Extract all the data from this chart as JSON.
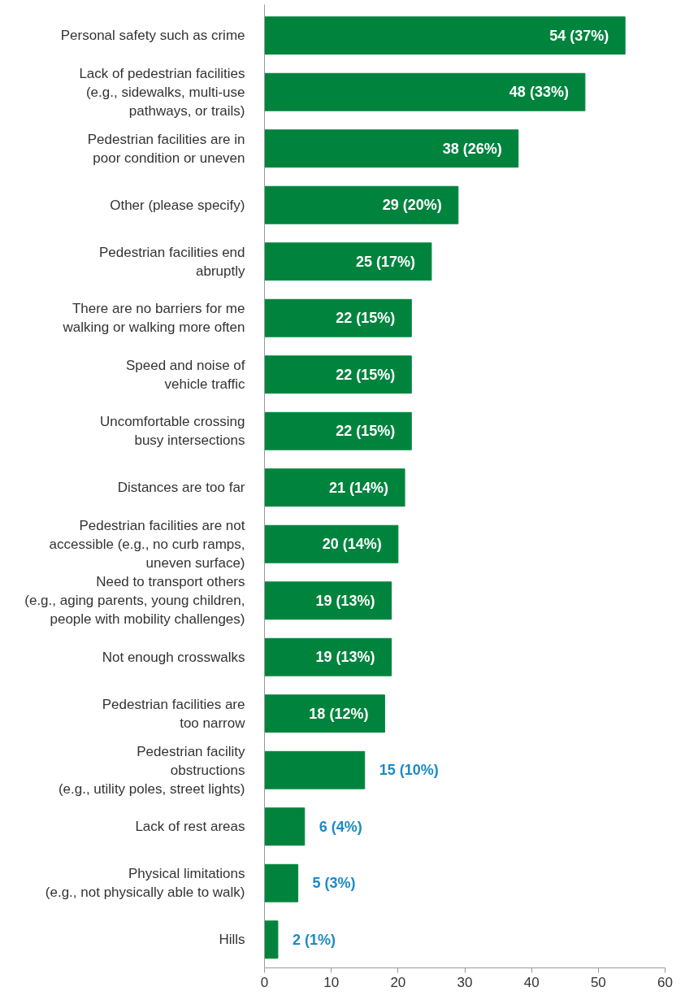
{
  "chart_data": {
    "type": "bar",
    "orientation": "horizontal",
    "categories": [
      "Personal safety such as crime",
      "Lack of pedestrian facilities\n(e.g., sidewalks, multi-use\npathways, or trails)",
      "Pedestrian facilities are in\npoor condition or uneven",
      "Other (please specify)",
      "Pedestrian facilities end\nabruptly",
      "There are no barriers for me\nwalking or walking more often",
      "Speed and noise of\nvehicle traffic",
      "Uncomfortable crossing\nbusy intersections",
      "Distances are too far",
      "Pedestrian facilities are not\naccessible (e.g., no curb ramps,\nuneven surface)",
      "Need to transport others\n(e.g., aging parents, young children,\npeople with mobility challenges)",
      "Not enough crosswalks",
      "Pedestrian facilities are\ntoo narrow",
      "Pedestrian facility\nobstructions\n(e.g., utility poles, street lights)",
      "Lack of rest areas",
      "Physical limitations\n(e.g., not physically able to walk)",
      "Hills"
    ],
    "values": [
      54,
      48,
      38,
      29,
      25,
      22,
      22,
      22,
      21,
      20,
      19,
      19,
      18,
      15,
      6,
      5,
      2
    ],
    "value_labels": [
      "54 (37%)",
      "48 (33%)",
      "38 (26%)",
      "29 (20%)",
      "25 (17%)",
      "22 (15%)",
      "22 (15%)",
      "22 (15%)",
      "21 (14%)",
      "20 (14%)",
      "19 (13%)",
      "19 (13%)",
      "18 (12%)",
      "15 (10%)",
      "6 (4%)",
      "5 (3%)",
      "2 (1%)"
    ],
    "color": "#00843d",
    "xlim": [
      0,
      60
    ],
    "xticks": [
      0,
      10,
      20,
      30,
      40,
      50,
      60
    ],
    "grid": false
  }
}
